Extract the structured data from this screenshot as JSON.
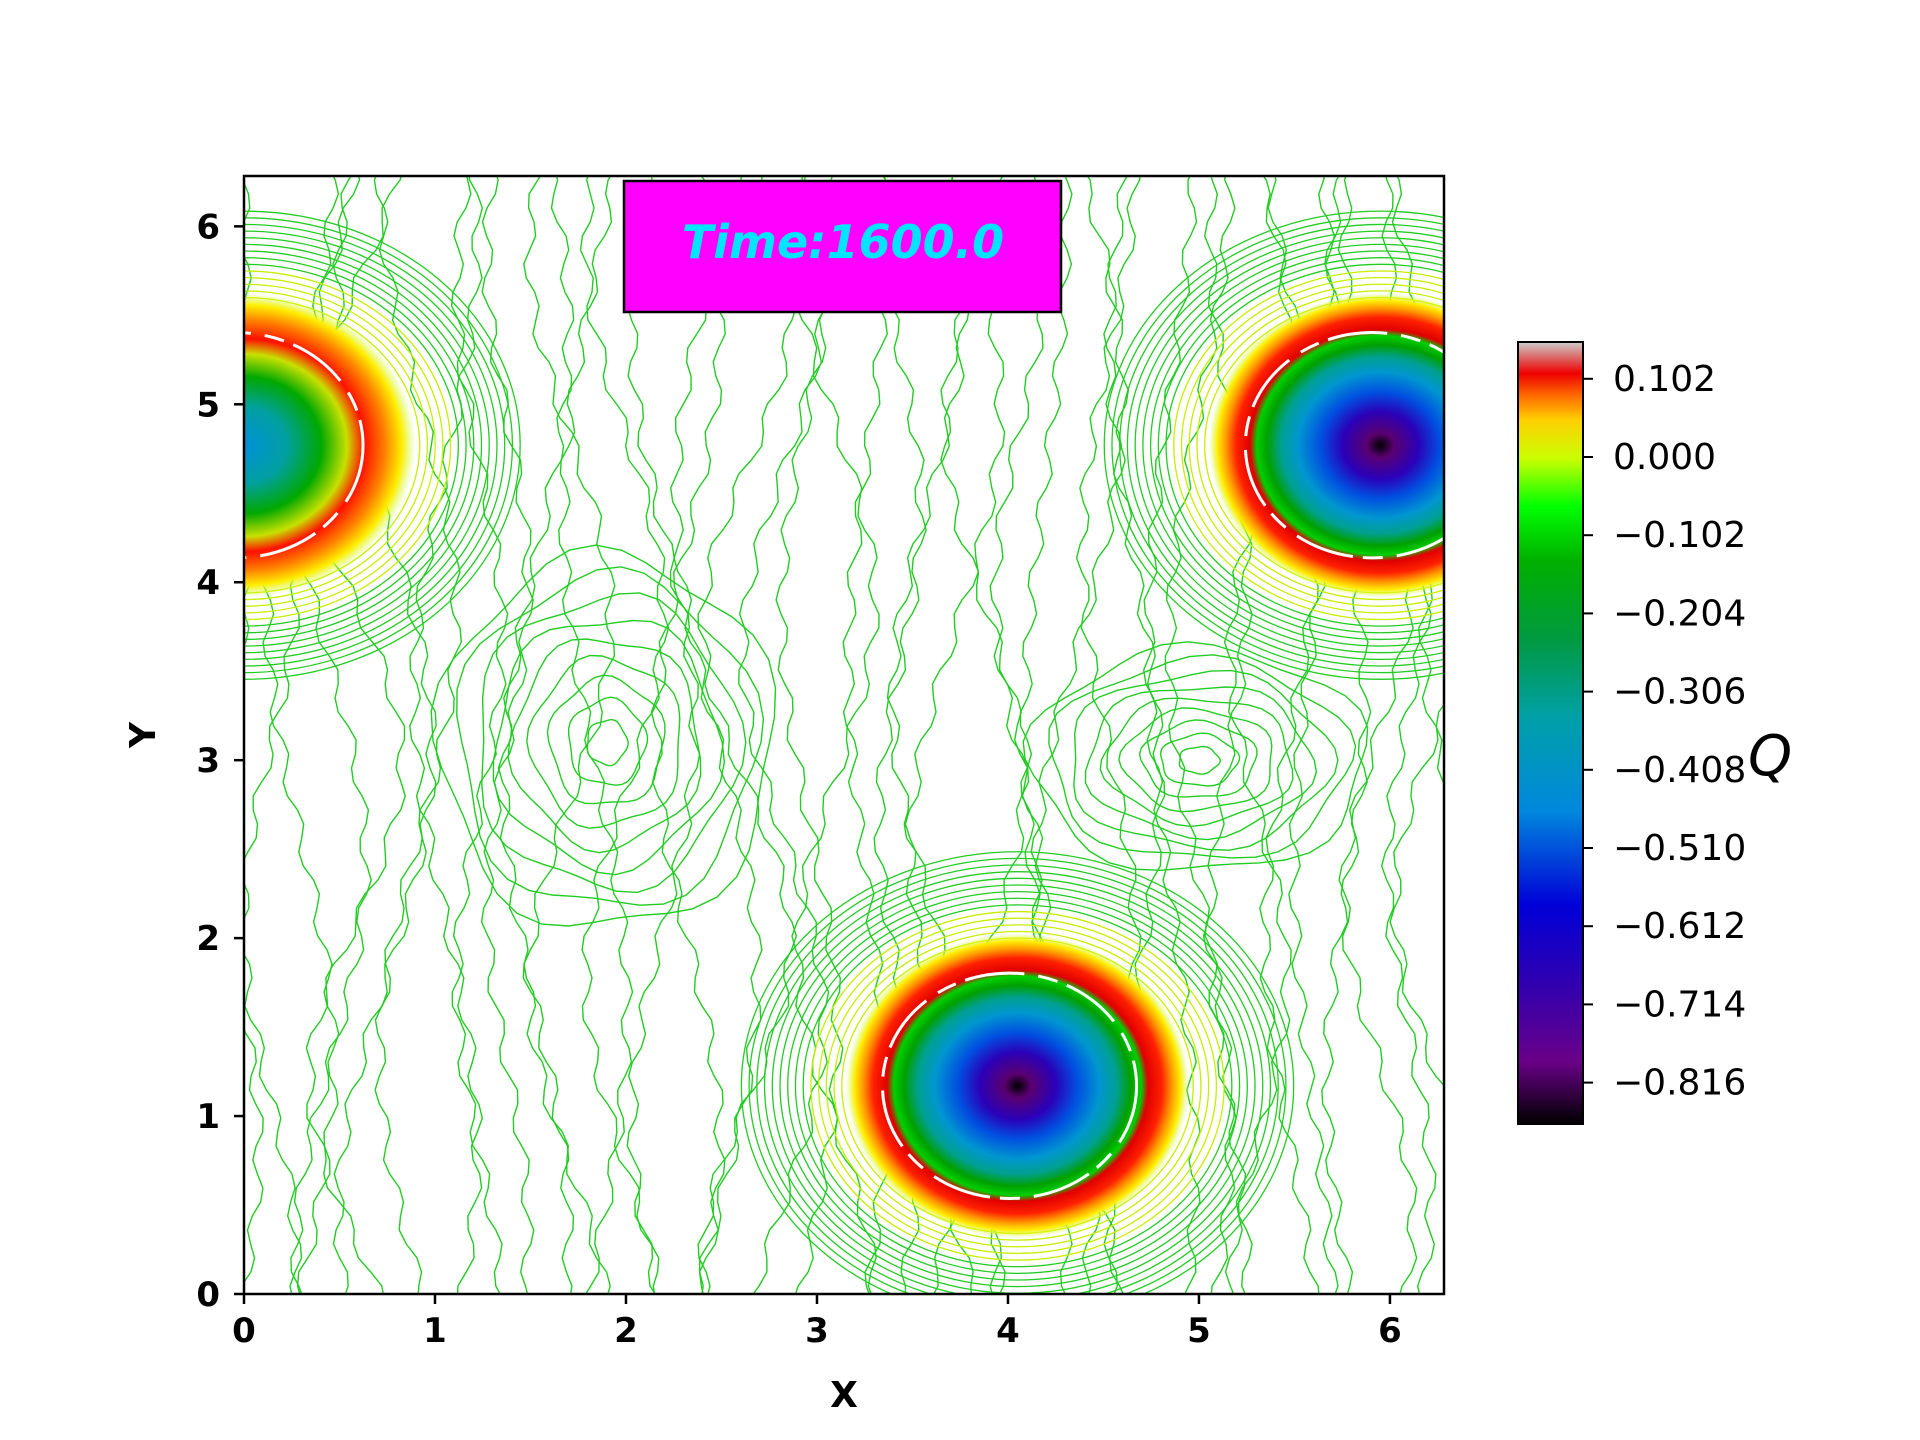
{
  "chart_data": {
    "type": "heatmap",
    "subtype": "filled contour plot of a vorticity-like field Q",
    "title": "",
    "annotation": "Time:1600.0",
    "xlabel": "X",
    "ylabel": "Y",
    "xlim": [
      0,
      6.283
    ],
    "ylim": [
      0,
      6.283
    ],
    "xticks": [
      "0",
      "1",
      "2",
      "3",
      "4",
      "5",
      "6"
    ],
    "yticks": [
      "0",
      "1",
      "2",
      "3",
      "4",
      "5",
      "6"
    ],
    "colorbar": {
      "label": "Q",
      "ticks": [
        "0.102",
        "0.000",
        "−0.102",
        "−0.204",
        "−0.306",
        "−0.408",
        "−0.510",
        "−0.612",
        "−0.714",
        "−0.816"
      ],
      "range": [
        -0.87,
        0.15
      ],
      "colormap": "nipy_spectral"
    },
    "vortices": [
      {
        "center_x": 4.05,
        "center_y": 1.17,
        "core_value": -0.87,
        "radius": 0.62
      },
      {
        "center_x": 5.95,
        "center_y": 4.77,
        "core_value": -0.78,
        "radius": 0.62
      },
      {
        "center_x": 0.0,
        "center_y": 4.77,
        "core_value": -0.45,
        "radius": 0.62
      }
    ],
    "grid": false,
    "background_contours": "green"
  },
  "annotation_style": {
    "box_fill": "#ff00ff",
    "text_color": "#00e5ff"
  },
  "contour_color": "#22cc22"
}
